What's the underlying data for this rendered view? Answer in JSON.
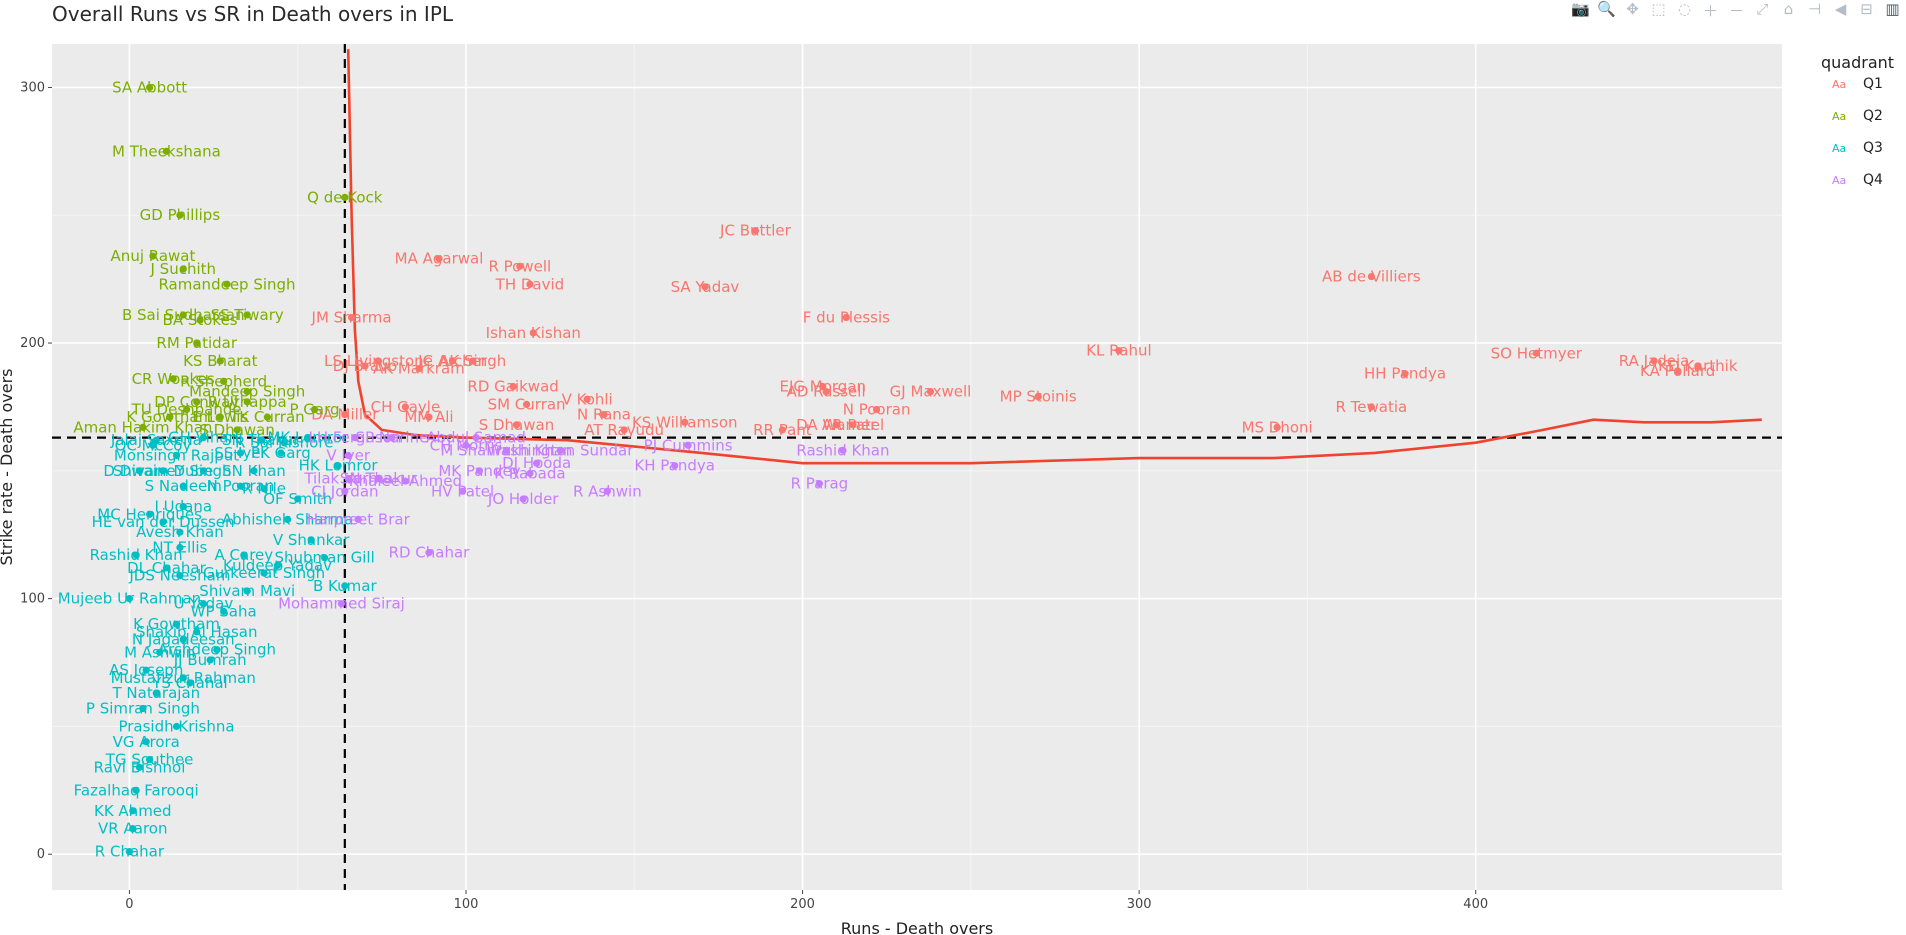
{
  "title": "Overall Runs vs SR in Death overs in IPL",
  "modebar": {
    "icons": [
      "camera-icon",
      "zoom-icon",
      "pan-icon",
      "box-select-icon",
      "lasso-icon",
      "zoom-in-icon",
      "zoom-out-icon",
      "autoscale-icon",
      "reset-axes-icon",
      "spike-lines-icon",
      "hover-closest-icon",
      "hover-compare-icon",
      "plotly-logo-icon"
    ],
    "glyphs": [
      "📷",
      "🔍",
      "✥",
      "⬚",
      "◌",
      "＋",
      "－",
      "⤢",
      "⌂",
      "⊣",
      "◀",
      "⊟",
      "▥"
    ]
  },
  "chart_data": {
    "type": "scatter",
    "title": "Overall Runs vs SR in Death overs in IPL",
    "xlabel": "Runs - Death overs",
    "ylabel": "Strike rate - Death overs",
    "xlim": [
      -23,
      491
    ],
    "ylim": [
      -14,
      317
    ],
    "x_ticks": [
      0,
      100,
      200,
      300,
      400
    ],
    "y_ticks": [
      0,
      100,
      200,
      300
    ],
    "vline_x": 64,
    "hline_y": 163,
    "legend": {
      "title": "quadrant",
      "placement": "right",
      "entries": [
        {
          "name": "Q1",
          "color": "#F8766D"
        },
        {
          "name": "Q2",
          "color": "#7CAE00"
        },
        {
          "name": "Q3",
          "color": "#00BFC4"
        },
        {
          "name": "Q4",
          "color": "#C77CFF"
        }
      ]
    },
    "smooth": {
      "color": "#F0432E",
      "x": [
        65,
        66,
        67,
        68,
        70,
        75,
        85,
        100,
        130,
        170,
        200,
        250,
        300,
        340,
        370,
        400,
        420,
        435,
        450,
        470,
        485
      ],
      "y": [
        315,
        250,
        205,
        185,
        172,
        166,
        164,
        163,
        162,
        157,
        153,
        153,
        155,
        155,
        157,
        161,
        166,
        170,
        169,
        169,
        170
      ]
    },
    "series": [
      {
        "name": "Q1",
        "color": "#F8766D",
        "points": [
          {
            "label": "JC Buttler",
            "x": 186,
            "y": 244
          },
          {
            "label": "AB de Villiers",
            "x": 369,
            "y": 226
          },
          {
            "label": "MA Agarwal",
            "x": 92,
            "y": 233
          },
          {
            "label": "R Powell",
            "x": 116,
            "y": 230
          },
          {
            "label": "TH David",
            "x": 119,
            "y": 223
          },
          {
            "label": "SA Yadav",
            "x": 171,
            "y": 222
          },
          {
            "label": "JM Sharma",
            "x": 66,
            "y": 210
          },
          {
            "label": "F du Plessis",
            "x": 213,
            "y": 210
          },
          {
            "label": "Ishan Kishan",
            "x": 120,
            "y": 204
          },
          {
            "label": "KL Rahul",
            "x": 294,
            "y": 197
          },
          {
            "label": "SO Hetmyer",
            "x": 418,
            "y": 196
          },
          {
            "label": "RA Jadeja",
            "x": 453,
            "y": 193
          },
          {
            "label": "KD Karthik",
            "x": 466,
            "y": 191
          },
          {
            "label": "KA Pollard",
            "x": 460,
            "y": 189
          },
          {
            "label": "HH Pandya",
            "x": 379,
            "y": 188
          },
          {
            "label": "JC Archer",
            "x": 96,
            "y": 193
          },
          {
            "label": "AK Singh",
            "x": 102,
            "y": 193
          },
          {
            "label": "AK Markram",
            "x": 86,
            "y": 190
          },
          {
            "label": "LS Livingstone",
            "x": 74,
            "y": 193
          },
          {
            "label": "DJ Bravo",
            "x": 70,
            "y": 191
          },
          {
            "label": "RD Gaikwad",
            "x": 114,
            "y": 183
          },
          {
            "label": "EJG Morgan",
            "x": 206,
            "y": 183
          },
          {
            "label": "AD Russell",
            "x": 207,
            "y": 181
          },
          {
            "label": "GJ Maxwell",
            "x": 238,
            "y": 181
          },
          {
            "label": "MP Stoinis",
            "x": 270,
            "y": 179
          },
          {
            "label": "V Kohli",
            "x": 136,
            "y": 178
          },
          {
            "label": "SM Curran",
            "x": 118,
            "y": 176
          },
          {
            "label": "CH Gayle",
            "x": 82,
            "y": 175
          },
          {
            "label": "N Pooran",
            "x": 222,
            "y": 174
          },
          {
            "label": "R Tewatia",
            "x": 369,
            "y": 175
          },
          {
            "label": "DA Miller",
            "x": 64,
            "y": 172
          },
          {
            "label": "MM Ali",
            "x": 89,
            "y": 171
          },
          {
            "label": "N Rana",
            "x": 141,
            "y": 172
          },
          {
            "label": "KS Williamson",
            "x": 165,
            "y": 169
          },
          {
            "label": "S Dhawan",
            "x": 115,
            "y": 168
          },
          {
            "label": "AT Rayudu",
            "x": 147,
            "y": 166
          },
          {
            "label": "RR Pant",
            "x": 194,
            "y": 166
          },
          {
            "label": "DA Warner",
            "x": 210,
            "y": 168
          },
          {
            "label": "AR Patel",
            "x": 215,
            "y": 168
          },
          {
            "label": "MS Dhoni",
            "x": 341,
            "y": 167
          }
        ]
      },
      {
        "name": "Q2",
        "color": "#7CAE00",
        "points": [
          {
            "label": "SA Abbott",
            "x": 6,
            "y": 300
          },
          {
            "label": "M Theekshana",
            "x": 11,
            "y": 275
          },
          {
            "label": "Q de Kock",
            "x": 64,
            "y": 257
          },
          {
            "label": "GD Phillips",
            "x": 15,
            "y": 250
          },
          {
            "label": "Anuj Rawat",
            "x": 7,
            "y": 234
          },
          {
            "label": "J Suchith",
            "x": 16,
            "y": 229
          },
          {
            "label": "Ramandeep Singh",
            "x": 29,
            "y": 223
          },
          {
            "label": "B Sai Sudharsan",
            "x": 16,
            "y": 211
          },
          {
            "label": "SS Tiwary",
            "x": 35,
            "y": 211
          },
          {
            "label": "BA Stokes",
            "x": 21,
            "y": 209
          },
          {
            "label": "RM Patidar",
            "x": 20,
            "y": 200
          },
          {
            "label": "KS Bharat",
            "x": 27,
            "y": 193
          },
          {
            "label": "CR Woakes",
            "x": 13,
            "y": 186
          },
          {
            "label": "R Shepherd",
            "x": 28,
            "y": 185
          },
          {
            "label": "Mandeep Singh",
            "x": 35,
            "y": 181
          },
          {
            "label": "DP Conway",
            "x": 20,
            "y": 177
          },
          {
            "label": "R Uthappa",
            "x": 35,
            "y": 177
          },
          {
            "label": "TU Deshpande",
            "x": 17,
            "y": 174
          },
          {
            "label": "P Garg",
            "x": 55,
            "y": 174
          },
          {
            "label": "K Gowtham",
            "x": 12,
            "y": 171
          },
          {
            "label": "E Lewis",
            "x": 27,
            "y": 171
          },
          {
            "label": "TK Curran",
            "x": 41,
            "y": 171
          },
          {
            "label": "Aman Hakim Khan",
            "x": 4,
            "y": 167
          },
          {
            "label": "S Dhawan",
            "x": 32,
            "y": 166
          }
        ]
      },
      {
        "name": "Q3",
        "color": "#00BFC4",
        "points": [
          {
            "label": "Jalaj Saxena",
            "x": 8,
            "y": 162
          },
          {
            "label": "GH Vihari",
            "x": 22,
            "y": 163
          },
          {
            "label": "SN Thakur",
            "x": 39,
            "y": 162
          },
          {
            "label": "R Sai Kishore",
            "x": 46,
            "y": 161
          },
          {
            "label": "MK Lomror",
            "x": 53,
            "y": 163
          },
          {
            "label": "OC McCoy",
            "x": 7,
            "y": 160
          },
          {
            "label": "Monsingh Rajput",
            "x": 14,
            "y": 156
          },
          {
            "label": "SS Iyer",
            "x": 33,
            "y": 157
          },
          {
            "label": "PK Garg",
            "x": 45,
            "y": 157
          },
          {
            "label": "D Dwaine",
            "x": 3,
            "y": 150
          },
          {
            "label": "Shivam Dube",
            "x": 10,
            "y": 150
          },
          {
            "label": "Y Singh",
            "x": 22,
            "y": 150
          },
          {
            "label": "SN Khan",
            "x": 37,
            "y": 150
          },
          {
            "label": "HK Lomror",
            "x": 62,
            "y": 152
          },
          {
            "label": "S Nadeem",
            "x": 16,
            "y": 144
          },
          {
            "label": "N Pooran",
            "x": 33,
            "y": 144
          },
          {
            "label": "R Nile",
            "x": 40,
            "y": 143
          },
          {
            "label": "OF Smith",
            "x": 50,
            "y": 139
          },
          {
            "label": "I Udana",
            "x": 16,
            "y": 136
          },
          {
            "label": "MC Henriques",
            "x": 6,
            "y": 133
          },
          {
            "label": "HE van der Dussen",
            "x": 10,
            "y": 130
          },
          {
            "label": "Abhishek Sharma",
            "x": 47,
            "y": 131
          },
          {
            "label": "Avesh Khan",
            "x": 15,
            "y": 126
          },
          {
            "label": "V Shankar",
            "x": 54,
            "y": 123
          },
          {
            "label": "NT Ellis",
            "x": 15,
            "y": 120
          },
          {
            "label": "Rashid Khan",
            "x": 2,
            "y": 117
          },
          {
            "label": "A Carey",
            "x": 34,
            "y": 117
          },
          {
            "label": "DL Chahar",
            "x": 11,
            "y": 112
          },
          {
            "label": "Kuldeep Yadav",
            "x": 44,
            "y": 113
          },
          {
            "label": "Shubman Gill",
            "x": 58,
            "y": 116
          },
          {
            "label": "JDS Neesham",
            "x": 15,
            "y": 109
          },
          {
            "label": "Gurkeerat Singh",
            "x": 40,
            "y": 110
          },
          {
            "label": "B Kumar",
            "x": 64,
            "y": 105
          },
          {
            "label": "Shivam Mavi",
            "x": 35,
            "y": 103
          },
          {
            "label": "Mujeeb Ur Rahman",
            "x": 0,
            "y": 100
          },
          {
            "label": "U Yadav",
            "x": 22,
            "y": 98
          },
          {
            "label": "WP Saha",
            "x": 28,
            "y": 95
          },
          {
            "label": "K Gowtham",
            "x": 14,
            "y": 90
          },
          {
            "label": "Shakib Al Hasan",
            "x": 20,
            "y": 87
          },
          {
            "label": "N Jagadeesan",
            "x": 16,
            "y": 84
          },
          {
            "label": "Arshdeep Singh",
            "x": 26,
            "y": 80
          },
          {
            "label": "M Ashwin",
            "x": 9,
            "y": 79
          },
          {
            "label": "JJ Bumrah",
            "x": 24,
            "y": 76
          },
          {
            "label": "AS Joseph",
            "x": 5,
            "y": 72
          },
          {
            "label": "Mustafizur Rahman",
            "x": 16,
            "y": 69
          },
          {
            "label": "YS Chahal",
            "x": 18,
            "y": 67
          },
          {
            "label": "T Natarajan",
            "x": 8,
            "y": 63
          },
          {
            "label": "P Simran Singh",
            "x": 4,
            "y": 57
          },
          {
            "label": "Prasidh Krishna",
            "x": 14,
            "y": 50
          },
          {
            "label": "VG Arora",
            "x": 5,
            "y": 44
          },
          {
            "label": "TG Southee",
            "x": 6,
            "y": 37
          },
          {
            "label": "Ravi Bishnoi",
            "x": 3,
            "y": 34
          },
          {
            "label": "Fazalhaq Farooqi",
            "x": 2,
            "y": 25
          },
          {
            "label": "KK Ahmed",
            "x": 1,
            "y": 17
          },
          {
            "label": "VR Aaron",
            "x": 1,
            "y": 10
          },
          {
            "label": "R Chahar",
            "x": 0,
            "y": 1
          }
        ]
      },
      {
        "name": "Q4",
        "color": "#C77CFF",
        "points": [
          {
            "label": "LH Ferguson",
            "x": 67,
            "y": 163
          },
          {
            "label": "SP Narine",
            "x": 78,
            "y": 163
          },
          {
            "label": "Abdul Samad",
            "x": 103,
            "y": 163
          },
          {
            "label": "PJ Cummins",
            "x": 166,
            "y": 160
          },
          {
            "label": "CH Morris",
            "x": 100,
            "y": 160
          },
          {
            "label": "M Shahrukh Khan",
            "x": 112,
            "y": 158
          },
          {
            "label": "Washington Sundar",
            "x": 128,
            "y": 158
          },
          {
            "label": "Rashid Khan",
            "x": 212,
            "y": 158
          },
          {
            "label": "V Iyer",
            "x": 65,
            "y": 156
          },
          {
            "label": "DJ Hooda",
            "x": 121,
            "y": 153
          },
          {
            "label": "KH Pandya",
            "x": 162,
            "y": 152
          },
          {
            "label": "MK Pandey",
            "x": 104,
            "y": 150
          },
          {
            "label": "K Rabada",
            "x": 119,
            "y": 149
          },
          {
            "label": "SN Thakur",
            "x": 74,
            "y": 147
          },
          {
            "label": "Khaleel Ahmed",
            "x": 82,
            "y": 146
          },
          {
            "label": "Tilak Varma",
            "x": 65,
            "y": 147
          },
          {
            "label": "R Parag",
            "x": 205,
            "y": 145
          },
          {
            "label": "CJ Jordan",
            "x": 64,
            "y": 142
          },
          {
            "label": "HV Patel",
            "x": 99,
            "y": 142
          },
          {
            "label": "R Ashwin",
            "x": 142,
            "y": 142
          },
          {
            "label": "JO Holder",
            "x": 117,
            "y": 139
          },
          {
            "label": "Harpreet Brar",
            "x": 68,
            "y": 131
          },
          {
            "label": "RD Chahar",
            "x": 89,
            "y": 118
          },
          {
            "label": "Mohammed Siraj",
            "x": 63,
            "y": 98
          }
        ]
      }
    ]
  }
}
